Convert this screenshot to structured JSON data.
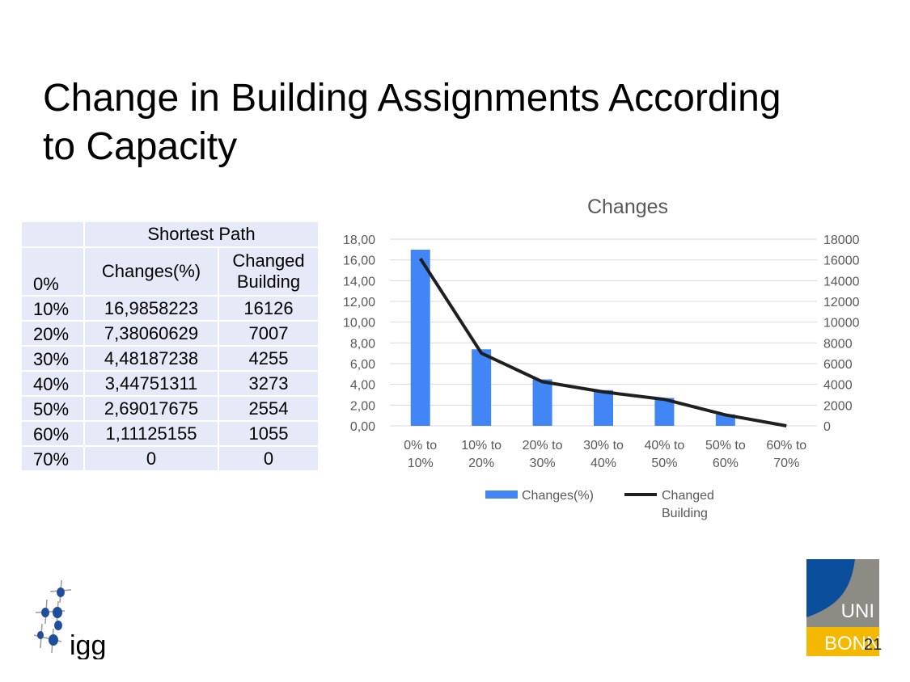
{
  "slide": {
    "title_line1": "Change in Building Assignments According",
    "title_line2": "to Capacity",
    "page_number": "21"
  },
  "table": {
    "group_header": "Shortest Path",
    "col_changes": "Changes(%)",
    "col_buildings_line1": "Changed",
    "col_buildings_line2": "Building",
    "first_label": "0%",
    "rows": [
      {
        "label": "10%",
        "changes": "16,9858223",
        "buildings": "16126"
      },
      {
        "label": "20%",
        "changes": "7,38060629",
        "buildings": "7007"
      },
      {
        "label": "30%",
        "changes": "4,48187238",
        "buildings": "4255"
      },
      {
        "label": "40%",
        "changes": "3,44751311",
        "buildings": "3273"
      },
      {
        "label": "50%",
        "changes": "2,69017675",
        "buildings": "2554"
      },
      {
        "label": "60%",
        "changes": "1,11125155",
        "buildings": "1055"
      },
      {
        "label": "70%",
        "changes": "0",
        "buildings": "0"
      }
    ]
  },
  "chart_data": {
    "type": "bar",
    "title": "Changes",
    "categories": [
      [
        "0%  to",
        "10%"
      ],
      [
        "10% to",
        "20%"
      ],
      [
        "20% to",
        "30%"
      ],
      [
        "30% to",
        "40%"
      ],
      [
        "40% to",
        "50%"
      ],
      [
        "50% to",
        "60%"
      ],
      [
        "60% to",
        "70%"
      ]
    ],
    "series": [
      {
        "name": "Changes(%)",
        "type": "bar",
        "axis": "left",
        "values": [
          16.9858223,
          7.38060629,
          4.48187238,
          3.44751311,
          2.69017675,
          1.11125155,
          0
        ]
      },
      {
        "name": "Changed Building",
        "legend_lines": [
          "Changed",
          "Building"
        ],
        "type": "line",
        "axis": "right",
        "values": [
          16126,
          7007,
          4255,
          3273,
          2554,
          1055,
          0
        ]
      }
    ],
    "y_left": {
      "min": 0,
      "max": 18,
      "ticks": [
        "0,00",
        "2,00",
        "4,00",
        "6,00",
        "8,00",
        "10,00",
        "12,00",
        "14,00",
        "16,00",
        "18,00"
      ]
    },
    "y_right": {
      "min": 0,
      "max": 18000,
      "ticks": [
        "0",
        "2000",
        "4000",
        "6000",
        "8000",
        "10000",
        "12000",
        "14000",
        "16000",
        "18000"
      ]
    },
    "grid": true,
    "legend_position": "bottom",
    "colors": {
      "bar": "#4285f4",
      "line": "#1f1f1f",
      "grid": "#d9d9d9",
      "tick": "#595959"
    }
  },
  "logos": {
    "igg_text": "igg",
    "bonn_top": "UNI",
    "bonn_bottom": "BONN",
    "colors": {
      "igg_blue": "#1f4e9c",
      "bonn_blue": "#0b4e9c",
      "bonn_grey": "#8c8c84",
      "bonn_yellow": "#f5b800"
    }
  }
}
